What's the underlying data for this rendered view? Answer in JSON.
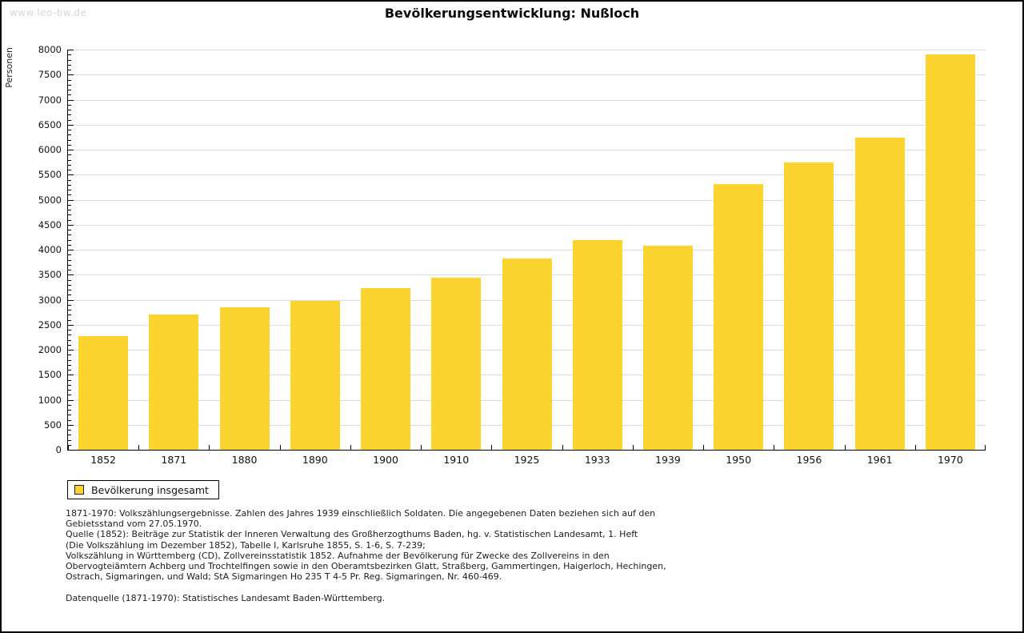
{
  "window": {
    "watermark": "www.leo-bw.de"
  },
  "title": "Bevölkerungsentwicklung: Nußloch",
  "chart_data": {
    "type": "bar",
    "title": "Bevölkerungsentwicklung: Nußloch",
    "xlabel": "",
    "ylabel": "Personen",
    "categories": [
      "1852",
      "1871",
      "1880",
      "1890",
      "1900",
      "1910",
      "1925",
      "1933",
      "1939",
      "1950",
      "1956",
      "1961",
      "1970"
    ],
    "values": [
      2280,
      2710,
      2850,
      2970,
      3230,
      3440,
      3830,
      4190,
      4080,
      5320,
      5750,
      6240,
      7900
    ],
    "series_name": "Bevölkerung insgesamt",
    "ylim": [
      0,
      8000
    ],
    "ytick_step": 500,
    "yminor_step": 100,
    "grid": "horizontal-major",
    "legend_position": "bottom-left",
    "bar_color": "#FCD430",
    "gridline_color": "#dcdcdc"
  },
  "legend": {
    "label": "Bevölkerung insgesamt",
    "swatch_color": "#FCD430"
  },
  "footnotes": {
    "lines": [
      "1871-1970: Volkszählungsergebnisse. Zahlen des Jahres 1939 einschließlich Soldaten. Die angegebenen Daten beziehen sich auf den",
      "Gebietsstand vom 27.05.1970.",
      "Quelle (1852): Beiträge zur Statistik der Inneren Verwaltung des Großherzogthums Baden, hg. v. Statistischen Landesamt, 1. Heft",
      "(Die Volkszählung im Dezember 1852), Tabelle I, Karlsruhe 1855, S. 1-6, S. 7-239;",
      "Volkszählung in Württemberg (CD), Zollvereinsstatistik 1852. Aufnahme der Bevölkerung für Zwecke des Zollvereins in den",
      "Obervogteiämtern Achberg und Trochtelfingen sowie in den Oberamtsbezirken Glatt, Straßberg, Gammertingen, Haigerloch, Hechingen,",
      "Ostrach, Sigmaringen, und Wald; StA Sigmaringen Ho 235 T 4-5 Pr. Reg. Sigmaringen, Nr. 460-469.",
      "",
      "Datenquelle (1871-1970): Statistisches Landesamt Baden-Württemberg."
    ]
  }
}
